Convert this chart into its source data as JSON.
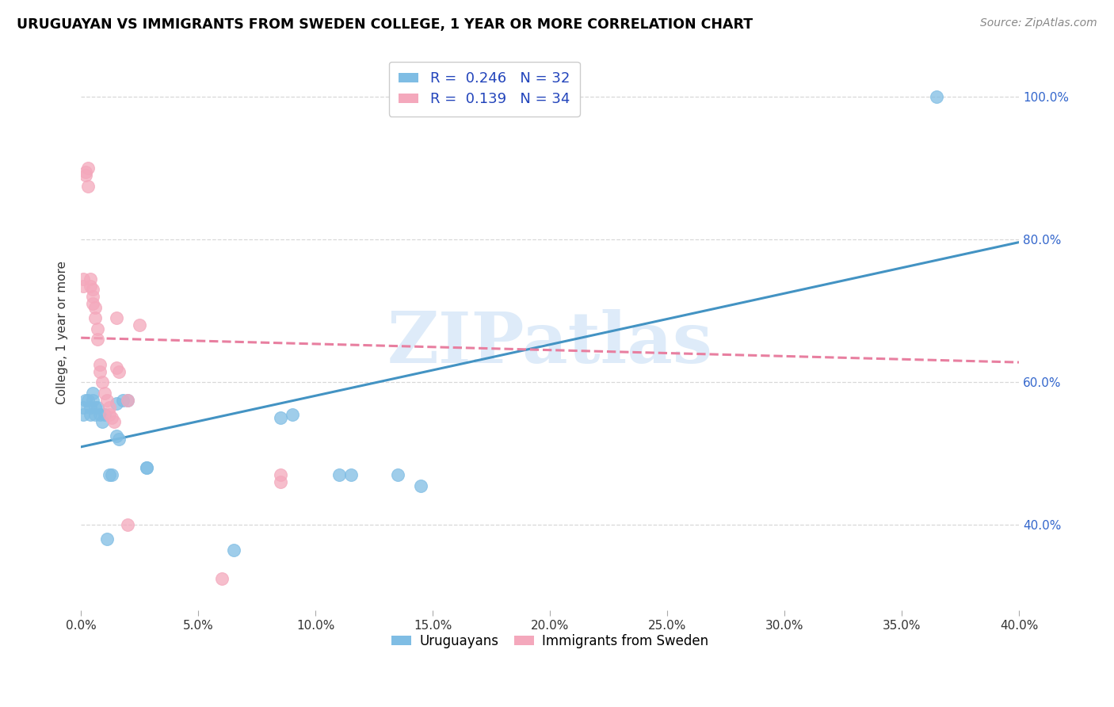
{
  "title": "URUGUAYAN VS IMMIGRANTS FROM SWEDEN COLLEGE, 1 YEAR OR MORE CORRELATION CHART",
  "source": "Source: ZipAtlas.com",
  "ylabel": "College, 1 year or more",
  "xlim": [
    0.0,
    0.4
  ],
  "ylim": [
    0.28,
    1.06
  ],
  "yticks": [
    0.4,
    0.6,
    0.8,
    1.0
  ],
  "ytick_labels_right": [
    "40.0%",
    "60.0%",
    "80.0%",
    "100.0%"
  ],
  "xticks": [
    0.0,
    0.05,
    0.1,
    0.15,
    0.2,
    0.25,
    0.3,
    0.35,
    0.4
  ],
  "blue_R": 0.246,
  "blue_N": 32,
  "pink_R": 0.139,
  "pink_N": 34,
  "blue_color": "#7fbde4",
  "pink_color": "#f4a8bc",
  "trend_blue": "#4393c3",
  "trend_pink": "#e87fa0",
  "watermark": "ZIPatlas",
  "watermark_color": "#c8dff5",
  "legend_label_blue": "Uruguayans",
  "legend_label_pink": "Immigrants from Sweden",
  "right_tick_color": "#3366cc",
  "grid_color": "#d8d8d8",
  "blue_x": [
    0.001,
    0.001,
    0.002,
    0.003,
    0.004,
    0.004,
    0.005,
    0.005,
    0.006,
    0.006,
    0.007,
    0.008,
    0.009,
    0.01,
    0.011,
    0.012,
    0.013,
    0.015,
    0.015,
    0.016,
    0.018,
    0.02,
    0.028,
    0.028,
    0.065,
    0.085,
    0.09,
    0.11,
    0.115,
    0.135,
    0.145,
    0.365
  ],
  "blue_y": [
    0.565,
    0.555,
    0.575,
    0.575,
    0.565,
    0.555,
    0.585,
    0.575,
    0.565,
    0.555,
    0.565,
    0.555,
    0.545,
    0.555,
    0.38,
    0.47,
    0.47,
    0.57,
    0.525,
    0.52,
    0.575,
    0.575,
    0.48,
    0.48,
    0.365,
    0.55,
    0.555,
    0.47,
    0.47,
    0.47,
    0.455,
    1.0
  ],
  "pink_x": [
    0.001,
    0.001,
    0.002,
    0.002,
    0.003,
    0.003,
    0.004,
    0.004,
    0.005,
    0.005,
    0.005,
    0.006,
    0.006,
    0.007,
    0.007,
    0.008,
    0.008,
    0.009,
    0.01,
    0.011,
    0.012,
    0.012,
    0.013,
    0.014,
    0.015,
    0.015,
    0.016,
    0.02,
    0.02,
    0.025,
    0.06,
    0.085,
    0.085,
    0.18
  ],
  "pink_y": [
    0.745,
    0.735,
    0.895,
    0.89,
    0.9,
    0.875,
    0.745,
    0.735,
    0.73,
    0.72,
    0.71,
    0.705,
    0.69,
    0.675,
    0.66,
    0.625,
    0.615,
    0.6,
    0.585,
    0.575,
    0.565,
    0.555,
    0.55,
    0.545,
    0.69,
    0.62,
    0.615,
    0.575,
    0.4,
    0.68,
    0.325,
    0.47,
    0.46,
    1.0
  ]
}
